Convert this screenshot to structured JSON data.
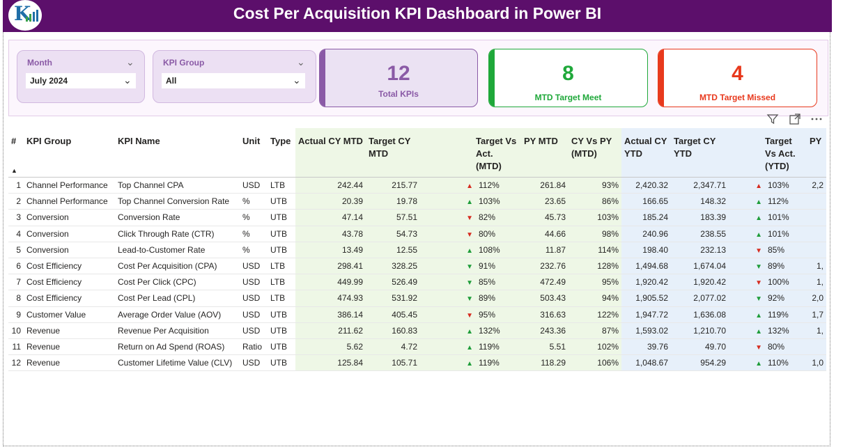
{
  "header": {
    "title": "Cost Per Acquisition KPI Dashboard in Power BI",
    "logo_letter": "K",
    "logo_icon": "bar-chart-logo"
  },
  "filters": [
    {
      "label": "Month",
      "value": "July 2024"
    },
    {
      "label": "KPI Group",
      "value": "All"
    }
  ],
  "cards": [
    {
      "value": "12",
      "label": "Total KPIs",
      "color": "#8a5aa6"
    },
    {
      "value": "8",
      "label": "MTD Target Meet",
      "color": "#1fa83a"
    },
    {
      "value": "4",
      "label": "MTD Target Missed",
      "color": "#e8391d"
    }
  ],
  "toolbar": {
    "icons": [
      "filter-icon",
      "focus-mode-icon",
      "more-options-icon"
    ]
  },
  "table": {
    "sort_marker": "▲",
    "columns": [
      "#",
      "KPI Group",
      "KPI Name",
      "Unit",
      "Type",
      "Actual CY MTD",
      "Target CY MTD",
      "Target Vs Act. (MTD)",
      "PY MTD",
      "CY Vs PY (MTD)",
      "Actual CY YTD",
      "Target CY YTD",
      "Target Vs Act. (YTD)",
      "PY"
    ],
    "rows": [
      {
        "n": "1",
        "group": "Channel Performance",
        "name": "Top Channel CPA",
        "unit": "USD",
        "type": "LTB",
        "act_mtd": "242.44",
        "tgt_mtd": "215.77",
        "arr_mtd": "▲",
        "arr_mtd_color": "red",
        "pct_mtd": "112%",
        "py_mtd": "261.84",
        "cy_py": "93%",
        "act_ytd": "2,420.32",
        "tgt_ytd": "2,347.71",
        "arr_ytd": "▲",
        "arr_ytd_color": "red",
        "pct_ytd": "103%",
        "py": "2,2"
      },
      {
        "n": "2",
        "group": "Channel Performance",
        "name": "Top Channel Conversion Rate",
        "unit": "%",
        "type": "UTB",
        "act_mtd": "20.39",
        "tgt_mtd": "19.78",
        "arr_mtd": "▲",
        "arr_mtd_color": "green",
        "pct_mtd": "103%",
        "py_mtd": "23.65",
        "cy_py": "86%",
        "act_ytd": "166.65",
        "tgt_ytd": "148.32",
        "arr_ytd": "▲",
        "arr_ytd_color": "green",
        "pct_ytd": "112%",
        "py": ""
      },
      {
        "n": "3",
        "group": "Conversion",
        "name": "Conversion Rate",
        "unit": "%",
        "type": "UTB",
        "act_mtd": "47.14",
        "tgt_mtd": "57.51",
        "arr_mtd": "▼",
        "arr_mtd_color": "red",
        "pct_mtd": "82%",
        "py_mtd": "45.73",
        "cy_py": "103%",
        "act_ytd": "185.24",
        "tgt_ytd": "183.39",
        "arr_ytd": "▲",
        "arr_ytd_color": "green",
        "pct_ytd": "101%",
        "py": ""
      },
      {
        "n": "4",
        "group": "Conversion",
        "name": "Click Through Rate (CTR)",
        "unit": "%",
        "type": "UTB",
        "act_mtd": "43.78",
        "tgt_mtd": "54.73",
        "arr_mtd": "▼",
        "arr_mtd_color": "red",
        "pct_mtd": "80%",
        "py_mtd": "44.66",
        "cy_py": "98%",
        "act_ytd": "240.96",
        "tgt_ytd": "238.55",
        "arr_ytd": "▲",
        "arr_ytd_color": "green",
        "pct_ytd": "101%",
        "py": ""
      },
      {
        "n": "5",
        "group": "Conversion",
        "name": "Lead-to-Customer Rate",
        "unit": "%",
        "type": "UTB",
        "act_mtd": "13.49",
        "tgt_mtd": "12.55",
        "arr_mtd": "▲",
        "arr_mtd_color": "green",
        "pct_mtd": "108%",
        "py_mtd": "11.87",
        "cy_py": "114%",
        "act_ytd": "198.40",
        "tgt_ytd": "232.13",
        "arr_ytd": "▼",
        "arr_ytd_color": "red",
        "pct_ytd": "85%",
        "py": ""
      },
      {
        "n": "6",
        "group": "Cost Efficiency",
        "name": "Cost Per Acquisition (CPA)",
        "unit": "USD",
        "type": "LTB",
        "act_mtd": "298.41",
        "tgt_mtd": "328.25",
        "arr_mtd": "▼",
        "arr_mtd_color": "green",
        "pct_mtd": "91%",
        "py_mtd": "232.76",
        "cy_py": "128%",
        "act_ytd": "1,494.68",
        "tgt_ytd": "1,674.04",
        "arr_ytd": "▼",
        "arr_ytd_color": "green",
        "pct_ytd": "89%",
        "py": "1,"
      },
      {
        "n": "7",
        "group": "Cost Efficiency",
        "name": "Cost Per Click (CPC)",
        "unit": "USD",
        "type": "LTB",
        "act_mtd": "449.99",
        "tgt_mtd": "526.49",
        "arr_mtd": "▼",
        "arr_mtd_color": "green",
        "pct_mtd": "85%",
        "py_mtd": "472.49",
        "cy_py": "95%",
        "act_ytd": "1,920.42",
        "tgt_ytd": "1,920.42",
        "arr_ytd": "▼",
        "arr_ytd_color": "red",
        "pct_ytd": "100%",
        "py": "1,"
      },
      {
        "n": "8",
        "group": "Cost Efficiency",
        "name": "Cost Per Lead (CPL)",
        "unit": "USD",
        "type": "LTB",
        "act_mtd": "474.93",
        "tgt_mtd": "531.92",
        "arr_mtd": "▼",
        "arr_mtd_color": "green",
        "pct_mtd": "89%",
        "py_mtd": "503.43",
        "cy_py": "94%",
        "act_ytd": "1,905.52",
        "tgt_ytd": "2,077.02",
        "arr_ytd": "▼",
        "arr_ytd_color": "green",
        "pct_ytd": "92%",
        "py": "2,0"
      },
      {
        "n": "9",
        "group": "Customer Value",
        "name": "Average Order Value (AOV)",
        "unit": "USD",
        "type": "UTB",
        "act_mtd": "386.14",
        "tgt_mtd": "405.45",
        "arr_mtd": "▼",
        "arr_mtd_color": "red",
        "pct_mtd": "95%",
        "py_mtd": "316.63",
        "cy_py": "122%",
        "act_ytd": "1,947.72",
        "tgt_ytd": "1,636.08",
        "arr_ytd": "▲",
        "arr_ytd_color": "green",
        "pct_ytd": "119%",
        "py": "1,7"
      },
      {
        "n": "10",
        "group": "Revenue",
        "name": "Revenue Per Acquisition",
        "unit": "USD",
        "type": "UTB",
        "act_mtd": "211.62",
        "tgt_mtd": "160.83",
        "arr_mtd": "▲",
        "arr_mtd_color": "green",
        "pct_mtd": "132%",
        "py_mtd": "243.36",
        "cy_py": "87%",
        "act_ytd": "1,593.02",
        "tgt_ytd": "1,210.70",
        "arr_ytd": "▲",
        "arr_ytd_color": "green",
        "pct_ytd": "132%",
        "py": "1,"
      },
      {
        "n": "11",
        "group": "Revenue",
        "name": "Return on Ad Spend (ROAS)",
        "unit": "Ratio",
        "type": "UTB",
        "act_mtd": "5.62",
        "tgt_mtd": "4.72",
        "arr_mtd": "▲",
        "arr_mtd_color": "green",
        "pct_mtd": "119%",
        "py_mtd": "5.51",
        "cy_py": "102%",
        "act_ytd": "39.76",
        "tgt_ytd": "49.70",
        "arr_ytd": "▼",
        "arr_ytd_color": "red",
        "pct_ytd": "80%",
        "py": ""
      },
      {
        "n": "12",
        "group": "Revenue",
        "name": "Customer Lifetime Value (CLV)",
        "unit": "USD",
        "type": "UTB",
        "act_mtd": "125.84",
        "tgt_mtd": "105.71",
        "arr_mtd": "▲",
        "arr_mtd_color": "green",
        "pct_mtd": "119%",
        "py_mtd": "118.29",
        "cy_py": "106%",
        "act_ytd": "1,048.67",
        "tgt_ytd": "954.29",
        "arr_ytd": "▲",
        "arr_ytd_color": "green",
        "pct_ytd": "110%",
        "py": "1,0"
      }
    ]
  }
}
